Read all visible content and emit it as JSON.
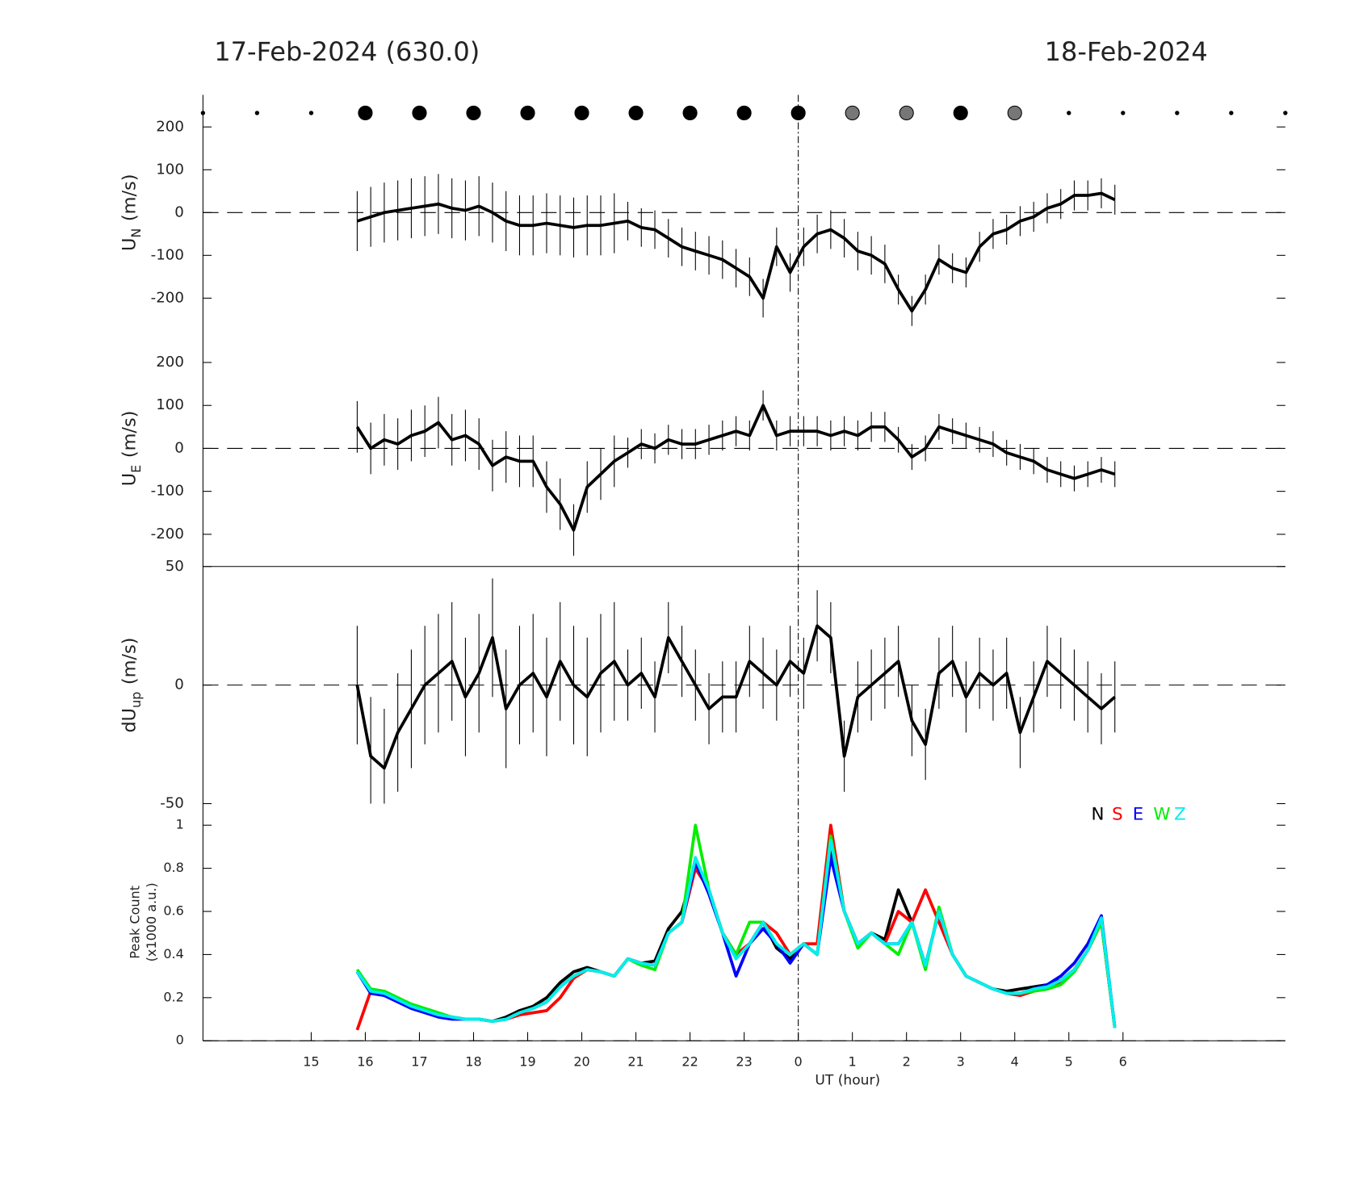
{
  "title_left": "17-Feb-2024 (630.0)",
  "title_right": "18-Feb-2024",
  "day_boundary": 24,
  "cloud_markers": {
    "x": [
      13,
      14,
      15,
      16,
      17,
      18,
      19,
      20,
      21,
      22,
      23,
      24,
      25,
      26,
      27,
      28,
      29,
      30,
      31,
      32,
      33
    ],
    "sizes": [
      2,
      2,
      2,
      8,
      8,
      8,
      8,
      8,
      8,
      8,
      8,
      8,
      8,
      8,
      8,
      8,
      2,
      2,
      2,
      2,
      2
    ],
    "colors": [
      "#000",
      "#000",
      "#000",
      "#000",
      "#000",
      "#000",
      "#000",
      "#000",
      "#000",
      "#000",
      "#000",
      "#000",
      "#777",
      "#777",
      "#000",
      "#777",
      "#000",
      "#000",
      "#000",
      "#000",
      "#000"
    ]
  },
  "chart_data": [
    {
      "type": "line",
      "ylabel": {
        "main": "U",
        "sub": "N",
        "unit": "(m/s)"
      },
      "xlim": [
        13,
        33
      ],
      "ylim": [
        -275,
        275
      ],
      "yticks": [
        -200,
        -100,
        0,
        100,
        200
      ],
      "zero_line": true,
      "x": [
        15.85,
        16.1,
        16.35,
        16.6,
        16.85,
        17.1,
        17.35,
        17.6,
        17.85,
        18.1,
        18.35,
        18.6,
        18.85,
        19.1,
        19.35,
        19.6,
        19.85,
        20.1,
        20.35,
        20.6,
        20.85,
        21.1,
        21.35,
        21.6,
        21.85,
        22.1,
        22.35,
        22.6,
        22.85,
        23.1,
        23.35,
        23.6,
        23.85,
        24.1,
        24.35,
        24.6,
        24.85,
        25.1,
        25.35,
        25.6,
        25.85,
        26.1,
        26.35,
        26.6,
        26.85,
        27.1,
        27.35,
        27.6,
        27.85,
        28.1,
        28.35,
        28.6,
        28.85,
        29.1,
        29.35,
        29.6,
        29.85
      ],
      "series": [
        {
          "color": "#000000",
          "values": [
            -20,
            -10,
            0,
            5,
            10,
            15,
            20,
            10,
            5,
            15,
            0,
            -20,
            -30,
            -30,
            -25,
            -30,
            -35,
            -30,
            -30,
            -25,
            -20,
            -35,
            -40,
            -60,
            -80,
            -90,
            -100,
            -110,
            -130,
            -150,
            -200,
            -80,
            -140,
            -80,
            -50,
            -40,
            -60,
            -90,
            -100,
            -120,
            -180,
            -230,
            -180,
            -110,
            -130,
            -140,
            -80,
            -50,
            -40,
            -20,
            -10,
            10,
            20,
            40,
            40,
            45,
            30
          ],
          "errors": [
            70,
            70,
            70,
            70,
            70,
            70,
            70,
            70,
            70,
            70,
            70,
            70,
            70,
            70,
            70,
            70,
            70,
            70,
            70,
            70,
            45,
            45,
            45,
            45,
            45,
            45,
            45,
            45,
            45,
            45,
            45,
            45,
            45,
            45,
            45,
            45,
            45,
            45,
            45,
            45,
            35,
            35,
            35,
            35,
            35,
            35,
            35,
            35,
            35,
            35,
            35,
            35,
            35,
            35,
            35,
            35,
            35
          ]
        }
      ]
    },
    {
      "type": "line",
      "ylabel": {
        "main": "U",
        "sub": "E",
        "unit": "(m/s)"
      },
      "xlim": [
        13,
        33
      ],
      "ylim": [
        -275,
        275
      ],
      "yticks": [
        -200,
        -100,
        0,
        100,
        200
      ],
      "zero_line": true,
      "x": [
        15.85,
        16.1,
        16.35,
        16.6,
        16.85,
        17.1,
        17.35,
        17.6,
        17.85,
        18.1,
        18.35,
        18.6,
        18.85,
        19.1,
        19.35,
        19.6,
        19.85,
        20.1,
        20.35,
        20.6,
        20.85,
        21.1,
        21.35,
        21.6,
        21.85,
        22.1,
        22.35,
        22.6,
        22.85,
        23.1,
        23.35,
        23.6,
        23.85,
        24.1,
        24.35,
        24.6,
        24.85,
        25.1,
        25.35,
        25.6,
        25.85,
        26.1,
        26.35,
        26.6,
        26.85,
        27.1,
        27.35,
        27.6,
        27.85,
        28.1,
        28.35,
        28.6,
        28.85,
        29.1,
        29.35,
        29.6,
        29.85
      ],
      "series": [
        {
          "color": "#000000",
          "values": [
            50,
            0,
            20,
            10,
            30,
            40,
            60,
            20,
            30,
            10,
            -40,
            -20,
            -30,
            -30,
            -90,
            -130,
            -190,
            -90,
            -60,
            -30,
            -10,
            10,
            0,
            20,
            10,
            10,
            20,
            30,
            40,
            30,
            100,
            30,
            40,
            40,
            40,
            30,
            40,
            30,
            50,
            50,
            20,
            -20,
            0,
            50,
            40,
            30,
            20,
            10,
            -10,
            -20,
            -30,
            -50,
            -60,
            -70,
            -60,
            -50,
            -60
          ],
          "errors": [
            60,
            60,
            60,
            60,
            60,
            60,
            60,
            60,
            60,
            60,
            60,
            60,
            60,
            60,
            60,
            60,
            60,
            60,
            60,
            60,
            35,
            35,
            35,
            35,
            35,
            35,
            35,
            35,
            35,
            35,
            35,
            35,
            35,
            35,
            35,
            35,
            35,
            35,
            35,
            35,
            30,
            30,
            30,
            30,
            30,
            30,
            30,
            30,
            30,
            30,
            30,
            30,
            30,
            30,
            30,
            30,
            30
          ]
        }
      ]
    },
    {
      "type": "line",
      "ylabel": {
        "main": "dU",
        "sub": "up",
        "unit": "(m/s)"
      },
      "xlim": [
        13,
        33
      ],
      "ylim": [
        -50,
        50
      ],
      "yticks": [
        -50,
        0,
        50
      ],
      "zero_line": true,
      "x": [
        15.85,
        16.1,
        16.35,
        16.6,
        16.85,
        17.1,
        17.35,
        17.6,
        17.85,
        18.1,
        18.35,
        18.6,
        18.85,
        19.1,
        19.35,
        19.6,
        19.85,
        20.1,
        20.35,
        20.6,
        20.85,
        21.1,
        21.35,
        21.6,
        21.85,
        22.1,
        22.35,
        22.6,
        22.85,
        23.1,
        23.35,
        23.6,
        23.85,
        24.1,
        24.35,
        24.6,
        24.85,
        25.1,
        25.35,
        25.6,
        25.85,
        26.1,
        26.35,
        26.6,
        26.85,
        27.1,
        27.35,
        27.6,
        27.85,
        28.1,
        28.35,
        28.6,
        28.85,
        29.1,
        29.35,
        29.6,
        29.85
      ],
      "series": [
        {
          "color": "#000000",
          "values": [
            0,
            -30,
            -35,
            -20,
            -10,
            0,
            5,
            10,
            -5,
            5,
            20,
            -10,
            0,
            5,
            -5,
            10,
            0,
            -5,
            5,
            10,
            0,
            5,
            -5,
            20,
            10,
            0,
            -10,
            -5,
            -5,
            10,
            5,
            0,
            10,
            5,
            25,
            20,
            -30,
            -5,
            0,
            5,
            10,
            -15,
            -25,
            5,
            10,
            -5,
            5,
            0,
            5,
            -20,
            -5,
            10,
            5,
            0,
            -5,
            -10,
            -5
          ],
          "errors": [
            25,
            25,
            25,
            25,
            25,
            25,
            25,
            25,
            25,
            25,
            25,
            25,
            25,
            25,
            25,
            25,
            25,
            25,
            25,
            25,
            15,
            15,
            15,
            15,
            15,
            15,
            15,
            15,
            15,
            15,
            15,
            15,
            15,
            15,
            15,
            15,
            15,
            15,
            15,
            15,
            15,
            15,
            15,
            15,
            15,
            15,
            15,
            15,
            15,
            15,
            15,
            15,
            15,
            15,
            15,
            15,
            15
          ]
        }
      ]
    },
    {
      "type": "line",
      "ylabel": {
        "main": "Peak Count",
        "unit": "(x1000 a.u.)"
      },
      "xlabel": "UT (hour)",
      "xlim": [
        13,
        33
      ],
      "ylim": [
        0,
        1.1
      ],
      "yticks": [
        0,
        0.2,
        0.4,
        0.6,
        0.8,
        1
      ],
      "zero_line": true,
      "xticks": [
        15,
        16,
        17,
        18,
        19,
        20,
        21,
        22,
        23,
        {
          "value": 24,
          "label": "0"
        },
        {
          "value": 25,
          "label": "1"
        },
        {
          "value": 26,
          "label": "2"
        },
        {
          "value": 27,
          "label": "3"
        },
        {
          "value": 28,
          "label": "4"
        },
        {
          "value": 29,
          "label": "5"
        },
        {
          "value": 30,
          "label": "6"
        }
      ],
      "x": [
        15.85,
        16.1,
        16.35,
        16.6,
        16.85,
        17.1,
        17.35,
        17.6,
        17.85,
        18.1,
        18.35,
        18.6,
        18.85,
        19.1,
        19.35,
        19.6,
        19.85,
        20.1,
        20.35,
        20.6,
        20.85,
        21.1,
        21.35,
        21.6,
        21.85,
        22.1,
        22.35,
        22.6,
        22.85,
        23.1,
        23.35,
        23.6,
        23.85,
        24.1,
        24.35,
        24.6,
        24.85,
        25.1,
        25.35,
        25.6,
        25.85,
        26.1,
        26.35,
        26.6,
        26.85,
        27.1,
        27.35,
        27.6,
        27.85,
        28.1,
        28.35,
        28.6,
        28.85,
        29.1,
        29.35,
        29.6,
        29.85
      ],
      "series": [
        {
          "name": "N",
          "color": "#000000",
          "values": [
            0.32,
            0.23,
            0.22,
            0.19,
            0.16,
            0.14,
            0.12,
            0.11,
            0.1,
            0.1,
            0.09,
            0.11,
            0.14,
            0.16,
            0.2,
            0.27,
            0.32,
            0.34,
            0.32,
            0.3,
            0.38,
            0.36,
            0.37,
            0.52,
            0.6,
            0.82,
            0.7,
            0.5,
            0.4,
            0.45,
            0.55,
            0.43,
            0.38,
            0.45,
            0.4,
            0.9,
            0.6,
            0.45,
            0.5,
            0.47,
            0.7,
            0.55,
            0.35,
            0.6,
            0.4,
            0.3,
            0.27,
            0.24,
            0.23,
            0.24,
            0.25,
            0.26,
            0.28,
            0.33,
            0.42,
            0.55,
            0.06
          ]
        },
        {
          "name": "S",
          "color": "#ff0000",
          "values": [
            0.05,
            0.23,
            0.22,
            0.19,
            0.16,
            0.14,
            0.12,
            0.11,
            0.1,
            0.1,
            0.09,
            0.1,
            0.12,
            0.13,
            0.14,
            0.2,
            0.29,
            0.33,
            0.32,
            0.3,
            0.38,
            0.36,
            0.35,
            0.5,
            0.55,
            0.8,
            0.7,
            0.5,
            0.4,
            0.45,
            0.55,
            0.5,
            0.4,
            0.45,
            0.45,
            1.0,
            0.6,
            0.45,
            0.5,
            0.45,
            0.6,
            0.55,
            0.7,
            0.55,
            0.4,
            0.3,
            0.27,
            0.24,
            0.22,
            0.21,
            0.23,
            0.24,
            0.27,
            0.33,
            0.42,
            0.55,
            0.06
          ]
        },
        {
          "name": "E",
          "color": "#0000ff",
          "values": [
            0.32,
            0.22,
            0.21,
            0.18,
            0.15,
            0.13,
            0.11,
            0.1,
            0.1,
            0.1,
            0.09,
            0.1,
            0.13,
            0.15,
            0.18,
            0.25,
            0.3,
            0.33,
            0.32,
            0.3,
            0.38,
            0.36,
            0.35,
            0.5,
            0.55,
            0.83,
            0.68,
            0.5,
            0.3,
            0.45,
            0.52,
            0.45,
            0.36,
            0.45,
            0.4,
            0.85,
            0.6,
            0.45,
            0.5,
            0.45,
            0.45,
            0.55,
            0.35,
            0.6,
            0.4,
            0.3,
            0.27,
            0.24,
            0.22,
            0.22,
            0.24,
            0.26,
            0.3,
            0.36,
            0.45,
            0.58,
            0.06
          ]
        },
        {
          "name": "W",
          "color": "#00ee00",
          "values": [
            0.33,
            0.24,
            0.23,
            0.2,
            0.17,
            0.15,
            0.13,
            0.11,
            0.1,
            0.1,
            0.09,
            0.1,
            0.13,
            0.15,
            0.18,
            0.25,
            0.3,
            0.33,
            0.32,
            0.3,
            0.38,
            0.35,
            0.33,
            0.5,
            0.55,
            1.0,
            0.7,
            0.5,
            0.4,
            0.55,
            0.55,
            0.45,
            0.4,
            0.45,
            0.4,
            0.95,
            0.6,
            0.43,
            0.5,
            0.45,
            0.4,
            0.55,
            0.33,
            0.62,
            0.4,
            0.3,
            0.27,
            0.24,
            0.22,
            0.22,
            0.23,
            0.24,
            0.26,
            0.32,
            0.42,
            0.55,
            0.06
          ]
        },
        {
          "name": "Z",
          "color": "#00eeee",
          "values": [
            0.32,
            0.23,
            0.22,
            0.19,
            0.16,
            0.14,
            0.12,
            0.11,
            0.1,
            0.1,
            0.09,
            0.1,
            0.13,
            0.15,
            0.18,
            0.25,
            0.3,
            0.33,
            0.32,
            0.3,
            0.38,
            0.36,
            0.35,
            0.5,
            0.55,
            0.85,
            0.7,
            0.5,
            0.38,
            0.45,
            0.55,
            0.45,
            0.4,
            0.45,
            0.4,
            0.93,
            0.6,
            0.45,
            0.5,
            0.45,
            0.45,
            0.55,
            0.35,
            0.6,
            0.4,
            0.3,
            0.27,
            0.24,
            0.22,
            0.22,
            0.24,
            0.25,
            0.28,
            0.33,
            0.42,
            0.57,
            0.06
          ]
        }
      ]
    }
  ]
}
